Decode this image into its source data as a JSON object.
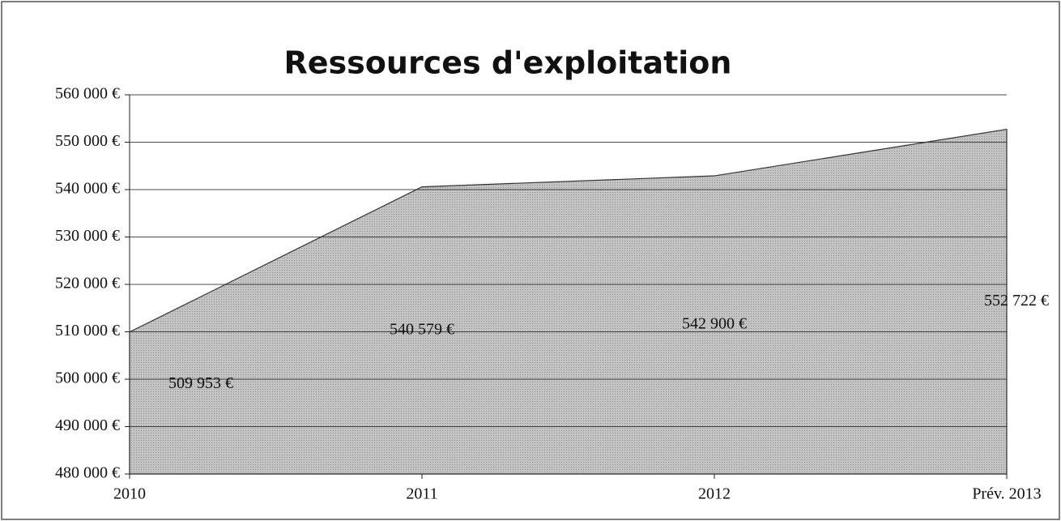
{
  "chart_data": {
    "type": "area",
    "title": "Ressources d'exploitation",
    "categories": [
      "2010",
      "2011",
      "2012",
      "Prév. 2013"
    ],
    "values": [
      509953,
      540579,
      542900,
      552722
    ],
    "value_labels": [
      "509 953 €",
      "540 579 €",
      "542 900 €",
      "552 722 €"
    ],
    "color": "#bdbdbd",
    "ylim": [
      480000,
      560000
    ],
    "yticks": [
      {
        "value": 480000,
        "label": "480 000 €"
      },
      {
        "value": 490000,
        "label": "490 000 €"
      },
      {
        "value": 500000,
        "label": "500 000 €"
      },
      {
        "value": 510000,
        "label": "510 000 €"
      },
      {
        "value": 520000,
        "label": "520 000 €"
      },
      {
        "value": 530000,
        "label": "530 000 €"
      },
      {
        "value": 540000,
        "label": "540 000 €"
      },
      {
        "value": 550000,
        "label": "550 000 €"
      },
      {
        "value": 560000,
        "label": "560 000 €"
      }
    ],
    "grid": true
  }
}
